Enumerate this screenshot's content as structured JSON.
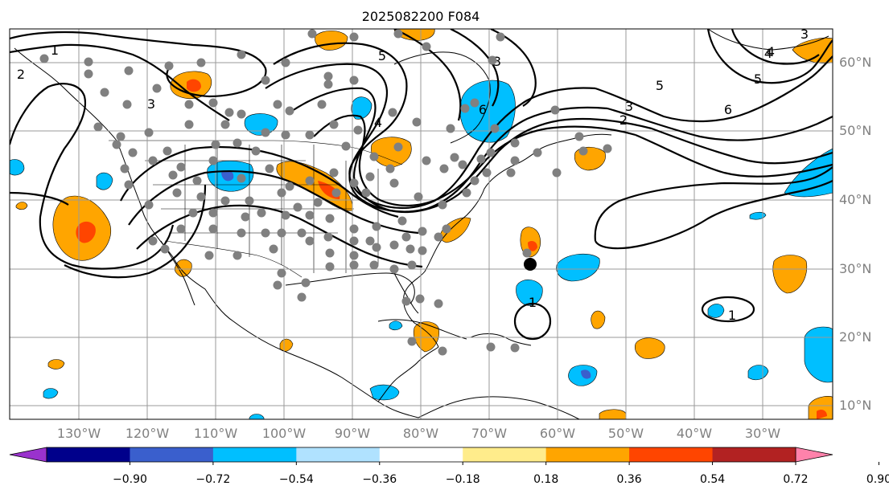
{
  "title": "2025082200 F084",
  "lon_ticks": [
    "130°W",
    "120°W",
    "110°W",
    "100°W",
    "90°W",
    "80°W",
    "70°W",
    "60°W",
    "50°W",
    "40°W",
    "30°W"
  ],
  "lat_ticks": [
    "10°N",
    "20°N",
    "30°N",
    "40°N",
    "50°N",
    "60°N"
  ],
  "colorbar": {
    "labels": [
      "−0.90",
      "−0.72",
      "−0.54",
      "−0.36",
      "−0.18",
      "0.18",
      "0.36",
      "0.54",
      "0.72",
      "0.90"
    ],
    "colors": [
      "#9a32cd",
      "#00008b",
      "#3a5fcd",
      "#00bfff",
      "#b0e2ff",
      "#ffffff",
      "#ffec8b",
      "#ffa500",
      "#ff4500",
      "#b22222",
      "#ff82ab"
    ]
  },
  "contour_labels": [
    "1",
    "2",
    "3",
    "4",
    "5",
    "6",
    "6",
    "5",
    "4",
    "3",
    "3",
    "2",
    "1",
    "1",
    "3",
    "4",
    "5"
  ],
  "marker": {
    "lon": -65,
    "lat": 30.8,
    "label": ""
  }
}
